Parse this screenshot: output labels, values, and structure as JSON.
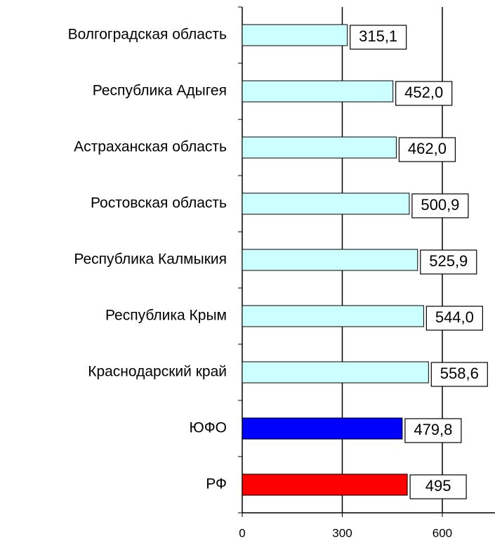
{
  "chart_data": {
    "type": "bar",
    "orientation": "horizontal",
    "categories": [
      "Волгоградская область",
      "Республика Адыгея",
      "Астраханская область",
      "Ростовская область",
      "Республика Калмыкия",
      "Республика Крым",
      "Краснодарский край",
      "ЮФО",
      "РФ"
    ],
    "values": [
      315.1,
      452.0,
      462.0,
      500.9,
      525.9,
      544.0,
      558.6,
      479.8,
      495
    ],
    "value_labels": [
      "315,1",
      "452,0",
      "462,0",
      "500,9",
      "525,9",
      "544,0",
      "558,6",
      "479,8",
      "495"
    ],
    "colors": [
      "#ccffff",
      "#ccffff",
      "#ccffff",
      "#ccffff",
      "#ccffff",
      "#ccffff",
      "#ccffff",
      "#0000ff",
      "#ff0000"
    ],
    "xlim": [
      0,
      758
    ],
    "xticks": [
      0,
      300,
      600
    ],
    "grid": true
  }
}
